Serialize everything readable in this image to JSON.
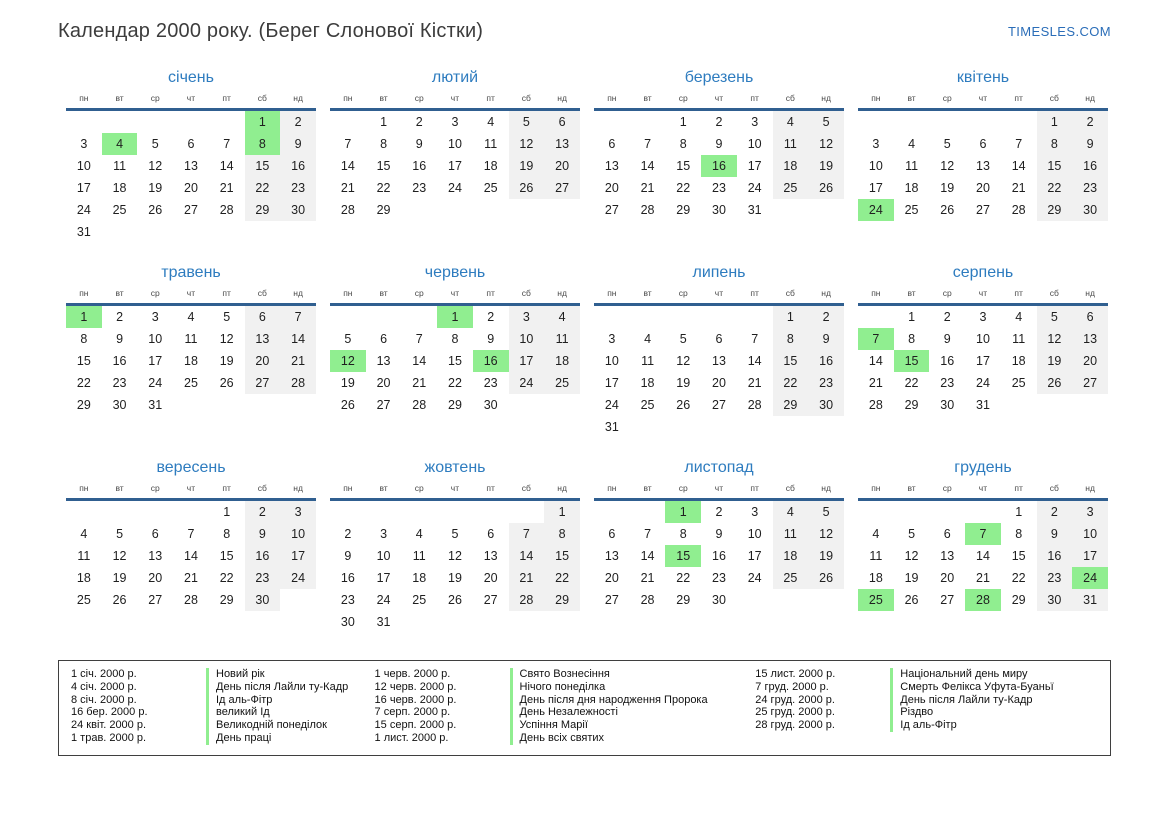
{
  "header": {
    "title": "Календар 2000 року. (Берег Слонової Кістки)",
    "site": "TIMESLES.COM"
  },
  "weekday_headers": [
    "пн",
    "вт",
    "ср",
    "чт",
    "пт",
    "сб",
    "нд"
  ],
  "months": [
    {
      "name": "січень",
      "start": 5,
      "days": 31,
      "highlights": [
        1,
        4,
        8
      ]
    },
    {
      "name": "лютий",
      "start": 1,
      "days": 29,
      "highlights": []
    },
    {
      "name": "березень",
      "start": 2,
      "days": 31,
      "highlights": [
        16
      ]
    },
    {
      "name": "квітень",
      "start": 5,
      "days": 30,
      "highlights": [
        24
      ]
    },
    {
      "name": "травень",
      "start": 0,
      "days": 31,
      "highlights": [
        1
      ]
    },
    {
      "name": "червень",
      "start": 3,
      "days": 30,
      "highlights": [
        1,
        12,
        16
      ]
    },
    {
      "name": "липень",
      "start": 5,
      "days": 31,
      "highlights": []
    },
    {
      "name": "серпень",
      "start": 1,
      "days": 31,
      "highlights": [
        7,
        15
      ]
    },
    {
      "name": "вересень",
      "start": 4,
      "days": 30,
      "highlights": []
    },
    {
      "name": "жовтень",
      "start": 6,
      "days": 31,
      "highlights": []
    },
    {
      "name": "листопад",
      "start": 2,
      "days": 30,
      "highlights": [
        1,
        15
      ]
    },
    {
      "name": "грудень",
      "start": 4,
      "days": 31,
      "highlights": [
        7,
        24,
        25,
        28
      ]
    }
  ],
  "legend": {
    "groups": [
      {
        "items": [
          {
            "date": "1 січ. 2000 р.",
            "name": "Новий рік"
          },
          {
            "date": "4 січ. 2000 р.",
            "name": "День після Лайли ту-Кадр"
          },
          {
            "date": "8 січ. 2000 р.",
            "name": "Ід аль-Фітр"
          },
          {
            "date": "16 бер. 2000 р.",
            "name": "великий Ід"
          },
          {
            "date": "24 квіт. 2000 р.",
            "name": "Великодній понеділок"
          },
          {
            "date": "1 трав. 2000 р.",
            "name": "День праці"
          }
        ]
      },
      {
        "items": [
          {
            "date": "1 черв. 2000 р.",
            "name": "Свято Вознесіння"
          },
          {
            "date": "12 черв. 2000 р.",
            "name": "Нічого понеділка"
          },
          {
            "date": "16 черв. 2000 р.",
            "name": "День після дня народження Пророка"
          },
          {
            "date": "7 серп. 2000 р.",
            "name": "День Незалежності"
          },
          {
            "date": "15 серп. 2000 р.",
            "name": "Успіння Марії"
          },
          {
            "date": "1 лист. 2000 р.",
            "name": "День всіх святих"
          }
        ]
      },
      {
        "items": [
          {
            "date": "15 лист. 2000 р.",
            "name": "Національний день миру"
          },
          {
            "date": "7 груд. 2000 р.",
            "name": "Смерть Фелікса Уфута-Буаньї"
          },
          {
            "date": "24 груд. 2000 р.",
            "name": "День після Лайли ту-Кадр"
          },
          {
            "date": "25 груд. 2000 р.",
            "name": "Різдво"
          },
          {
            "date": "28 груд. 2000 р.",
            "name": "Ід аль-Фітр"
          }
        ]
      }
    ]
  },
  "colors": {
    "accent_blue": "#2e7cbf",
    "header_line_blue": "#305f90",
    "highlight_green": "#90ee90",
    "weekend_gray": "#f1f1f1"
  }
}
